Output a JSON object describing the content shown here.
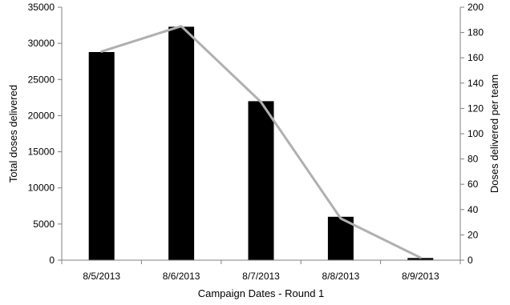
{
  "chart_data": {
    "type": "bar",
    "categories": [
      "8/5/2013",
      "8/6/2013",
      "8/7/2013",
      "8/8/2013",
      "8/9/2013"
    ],
    "series": [
      {
        "values": [
          28800,
          32300,
          22000,
          6000,
          300
        ],
        "axis": "left",
        "render": "bar",
        "color": "#000000"
      },
      {
        "values": [
          165,
          185,
          125,
          33,
          2
        ],
        "axis": "right",
        "render": "line",
        "color": "#b0b0b0"
      }
    ],
    "xlabel": "Campaign Dates - Round 1",
    "ylabel": "Total doses delivered",
    "y2label": "Doses delivered per team",
    "ylim": [
      0,
      35000
    ],
    "y2lim": [
      0,
      200
    ],
    "yticks": [
      "0",
      "5000",
      "10000",
      "15000",
      "20000",
      "25000",
      "30000",
      "35000"
    ],
    "y2ticks": [
      "0",
      "20",
      "40",
      "60",
      "80",
      "100",
      "120",
      "140",
      "160",
      "180",
      "200"
    ],
    "grid": false,
    "legend": "none"
  }
}
